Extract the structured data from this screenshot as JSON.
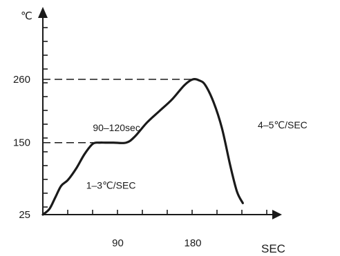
{
  "chart_data": {
    "type": "line",
    "title": "",
    "ylabel": "℃",
    "xlabel": "SEC",
    "y_ticks": [
      25,
      150,
      260
    ],
    "x_ticks": [
      90,
      180
    ],
    "xlim": [
      0,
      260
    ],
    "ylim": [
      25,
      345
    ],
    "grid": false,
    "reference_lines": [
      {
        "y": 260,
        "x_from": 0,
        "x_to": 180
      },
      {
        "y": 150,
        "x_from": 0,
        "x_to": 70
      }
    ],
    "series": [
      {
        "x": [
          0,
          8,
          15,
          22,
          30,
          40,
          50,
          60,
          68,
          75,
          85,
          100,
          110,
          125,
          140,
          155,
          170,
          180,
          188,
          195,
          205,
          215,
          225,
          233,
          240
        ],
        "y": [
          25,
          35,
          55,
          75,
          85,
          105,
          130,
          148,
          150,
          150,
          150,
          150,
          160,
          185,
          205,
          225,
          250,
          260,
          258,
          250,
          220,
          175,
          110,
          65,
          45
        ]
      }
    ],
    "annotations": [
      {
        "text": "90–120sec",
        "x": 60,
        "y": 170
      },
      {
        "text": "1–3℃/SEC",
        "x": 52,
        "y": 70
      },
      {
        "text": "4–5℃/SEC",
        "x": 258,
        "y": 175
      }
    ]
  }
}
